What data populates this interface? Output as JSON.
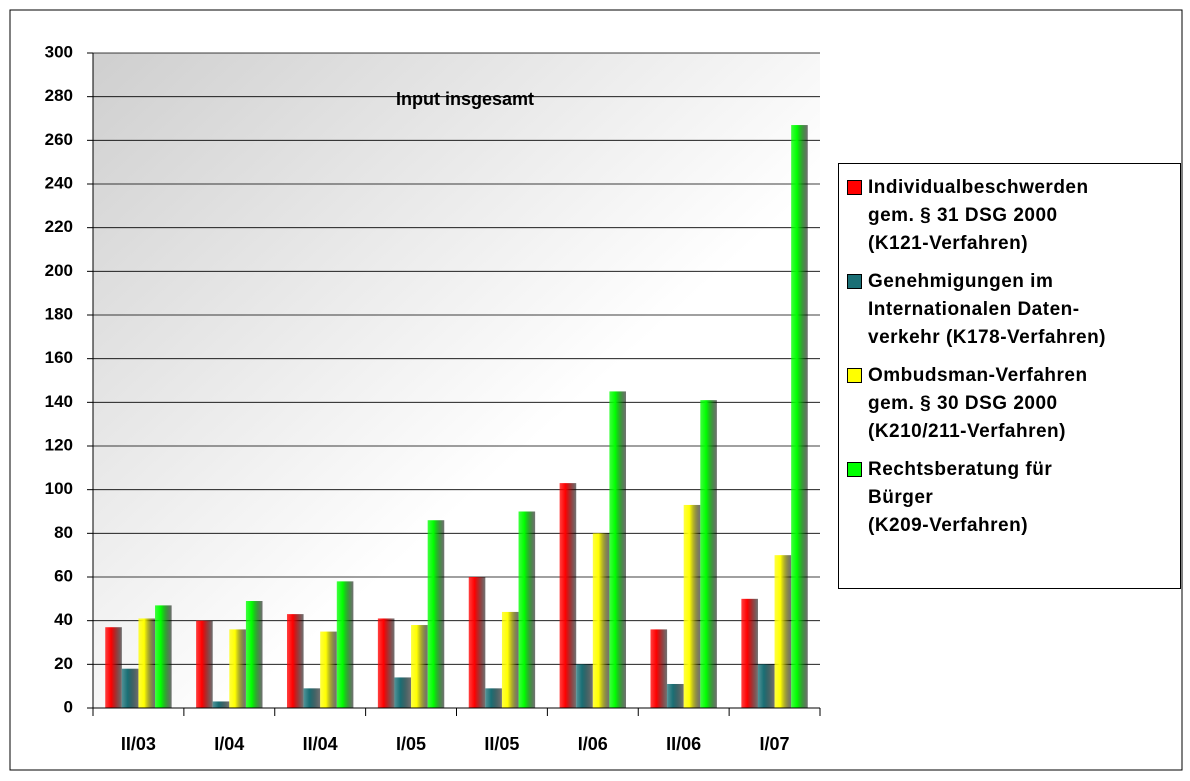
{
  "chart_data": {
    "type": "bar",
    "title": "Input insgesamt",
    "categories": [
      "II/03",
      "I/04",
      "II/04",
      "I/05",
      "II/05",
      "I/06",
      "II/06",
      "I/07"
    ],
    "series": [
      {
        "name": "Individualbeschwerden\ngem. § 31 DSG 2000\n(K121-Verfahren)",
        "color": "#ff0000",
        "values": [
          37,
          40,
          43,
          41,
          60,
          103,
          36,
          50
        ]
      },
      {
        "name": "Genehmigungen im\nInternationalen Daten-\nverkehr (K178-Verfahren)",
        "color": "#1a6f75",
        "values": [
          18,
          3,
          9,
          14,
          9,
          20,
          11,
          20
        ]
      },
      {
        "name": "Ombudsman-Verfahren\ngem. § 30 DSG 2000\n(K210/211-Verfahren)",
        "color": "#ffff00",
        "values": [
          41,
          36,
          35,
          38,
          44,
          80,
          93,
          70
        ]
      },
      {
        "name": "Rechtsberatung für\nBürger\n(K209-Verfahren)",
        "color": "#00ff00",
        "values": [
          47,
          49,
          58,
          86,
          90,
          145,
          141,
          267
        ]
      }
    ],
    "ylim": [
      0,
      300
    ],
    "yticks": [
      0,
      20,
      40,
      60,
      80,
      100,
      120,
      140,
      160,
      180,
      200,
      220,
      240,
      260,
      280,
      300
    ],
    "grid": true,
    "legend": "right"
  }
}
